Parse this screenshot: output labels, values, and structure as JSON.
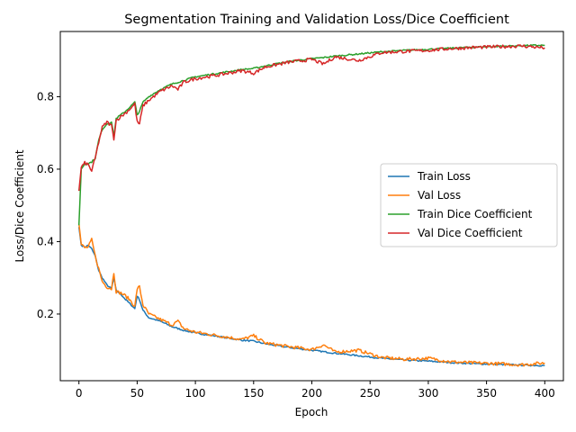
{
  "chart_data": {
    "type": "line",
    "title": "Segmentation Training and Validation Loss/Dice Coefficient",
    "xlabel": "Epoch",
    "ylabel": "Loss/Dice Coefficient",
    "xlim": [
      -16,
      416
    ],
    "ylim": [
      0.016,
      0.98
    ],
    "xticks": [
      0,
      50,
      100,
      150,
      200,
      250,
      300,
      350,
      400
    ],
    "xtick_labels": [
      "0",
      "50",
      "100",
      "150",
      "200",
      "250",
      "300",
      "350",
      "400"
    ],
    "yticks": [
      0.2,
      0.4,
      0.6,
      0.8
    ],
    "ytick_labels": [
      "0.2",
      "0.4",
      "0.6",
      "0.8"
    ],
    "grid": false,
    "legend_position": "center-right",
    "series": [
      {
        "name": "Train Loss",
        "color": "#1f77b4",
        "points": [
          [
            0,
            0.44
          ],
          [
            2,
            0.39
          ],
          [
            5,
            0.385
          ],
          [
            8,
            0.39
          ],
          [
            11,
            0.38
          ],
          [
            14,
            0.36
          ],
          [
            17,
            0.32
          ],
          [
            20,
            0.3
          ],
          [
            24,
            0.28
          ],
          [
            28,
            0.27
          ],
          [
            30,
            0.3
          ],
          [
            32,
            0.265
          ],
          [
            36,
            0.255
          ],
          [
            40,
            0.24
          ],
          [
            45,
            0.225
          ],
          [
            48,
            0.215
          ],
          [
            50,
            0.25
          ],
          [
            52,
            0.24
          ],
          [
            55,
            0.21
          ],
          [
            60,
            0.19
          ],
          [
            70,
            0.18
          ],
          [
            80,
            0.165
          ],
          [
            90,
            0.155
          ],
          [
            100,
            0.148
          ],
          [
            120,
            0.138
          ],
          [
            140,
            0.128
          ],
          [
            150,
            0.125
          ],
          [
            160,
            0.118
          ],
          [
            180,
            0.108
          ],
          [
            200,
            0.1
          ],
          [
            210,
            0.096
          ],
          [
            220,
            0.092
          ],
          [
            240,
            0.085
          ],
          [
            260,
            0.078
          ],
          [
            280,
            0.073
          ],
          [
            300,
            0.07
          ],
          [
            320,
            0.066
          ],
          [
            340,
            0.063
          ],
          [
            360,
            0.061
          ],
          [
            380,
            0.059
          ],
          [
            400,
            0.058
          ]
        ]
      },
      {
        "name": "Val Loss",
        "color": "#ff7f0e",
        "points": [
          [
            0,
            0.45
          ],
          [
            2,
            0.392
          ],
          [
            5,
            0.383
          ],
          [
            8,
            0.385
          ],
          [
            11,
            0.405
          ],
          [
            14,
            0.36
          ],
          [
            17,
            0.325
          ],
          [
            20,
            0.29
          ],
          [
            24,
            0.275
          ],
          [
            28,
            0.27
          ],
          [
            30,
            0.315
          ],
          [
            32,
            0.262
          ],
          [
            36,
            0.258
          ],
          [
            40,
            0.25
          ],
          [
            45,
            0.235
          ],
          [
            48,
            0.22
          ],
          [
            50,
            0.27
          ],
          [
            52,
            0.275
          ],
          [
            55,
            0.225
          ],
          [
            60,
            0.2
          ],
          [
            70,
            0.185
          ],
          [
            80,
            0.17
          ],
          [
            85,
            0.18
          ],
          [
            90,
            0.16
          ],
          [
            100,
            0.15
          ],
          [
            120,
            0.14
          ],
          [
            140,
            0.13
          ],
          [
            150,
            0.14
          ],
          [
            160,
            0.12
          ],
          [
            180,
            0.11
          ],
          [
            200,
            0.102
          ],
          [
            210,
            0.115
          ],
          [
            220,
            0.095
          ],
          [
            240,
            0.1
          ],
          [
            260,
            0.08
          ],
          [
            280,
            0.075
          ],
          [
            300,
            0.078
          ],
          [
            320,
            0.068
          ],
          [
            340,
            0.065
          ],
          [
            360,
            0.063
          ],
          [
            380,
            0.06
          ],
          [
            400,
            0.065
          ]
        ]
      },
      {
        "name": "Train Dice Coefficient",
        "color": "#2ca02c",
        "points": [
          [
            0,
            0.445
          ],
          [
            2,
            0.6
          ],
          [
            5,
            0.615
          ],
          [
            8,
            0.615
          ],
          [
            11,
            0.62
          ],
          [
            14,
            0.63
          ],
          [
            17,
            0.68
          ],
          [
            20,
            0.71
          ],
          [
            24,
            0.725
          ],
          [
            28,
            0.73
          ],
          [
            30,
            0.69
          ],
          [
            32,
            0.74
          ],
          [
            36,
            0.75
          ],
          [
            40,
            0.76
          ],
          [
            45,
            0.775
          ],
          [
            48,
            0.785
          ],
          [
            50,
            0.75
          ],
          [
            52,
            0.76
          ],
          [
            55,
            0.785
          ],
          [
            60,
            0.8
          ],
          [
            70,
            0.82
          ],
          [
            80,
            0.835
          ],
          [
            90,
            0.845
          ],
          [
            100,
            0.855
          ],
          [
            120,
            0.865
          ],
          [
            140,
            0.875
          ],
          [
            150,
            0.878
          ],
          [
            160,
            0.885
          ],
          [
            180,
            0.897
          ],
          [
            200,
            0.905
          ],
          [
            210,
            0.908
          ],
          [
            220,
            0.912
          ],
          [
            240,
            0.918
          ],
          [
            260,
            0.924
          ],
          [
            280,
            0.928
          ],
          [
            300,
            0.931
          ],
          [
            320,
            0.934
          ],
          [
            340,
            0.937
          ],
          [
            360,
            0.939
          ],
          [
            380,
            0.941
          ],
          [
            400,
            0.942
          ]
        ]
      },
      {
        "name": "Val Dice Coefficient",
        "color": "#d62728",
        "points": [
          [
            0,
            0.54
          ],
          [
            2,
            0.605
          ],
          [
            5,
            0.617
          ],
          [
            8,
            0.612
          ],
          [
            11,
            0.595
          ],
          [
            14,
            0.63
          ],
          [
            17,
            0.675
          ],
          [
            20,
            0.715
          ],
          [
            24,
            0.73
          ],
          [
            28,
            0.72
          ],
          [
            30,
            0.685
          ],
          [
            32,
            0.735
          ],
          [
            36,
            0.745
          ],
          [
            40,
            0.755
          ],
          [
            45,
            0.77
          ],
          [
            48,
            0.78
          ],
          [
            50,
            0.73
          ],
          [
            52,
            0.725
          ],
          [
            55,
            0.775
          ],
          [
            60,
            0.79
          ],
          [
            70,
            0.815
          ],
          [
            80,
            0.83
          ],
          [
            85,
            0.82
          ],
          [
            90,
            0.84
          ],
          [
            100,
            0.85
          ],
          [
            120,
            0.86
          ],
          [
            140,
            0.872
          ],
          [
            150,
            0.865
          ],
          [
            160,
            0.882
          ],
          [
            180,
            0.895
          ],
          [
            200,
            0.903
          ],
          [
            210,
            0.89
          ],
          [
            220,
            0.91
          ],
          [
            240,
            0.9
          ],
          [
            260,
            0.922
          ],
          [
            280,
            0.925
          ],
          [
            300,
            0.928
          ],
          [
            320,
            0.933
          ],
          [
            340,
            0.936
          ],
          [
            360,
            0.938
          ],
          [
            380,
            0.94
          ],
          [
            400,
            0.935
          ]
        ]
      }
    ]
  }
}
